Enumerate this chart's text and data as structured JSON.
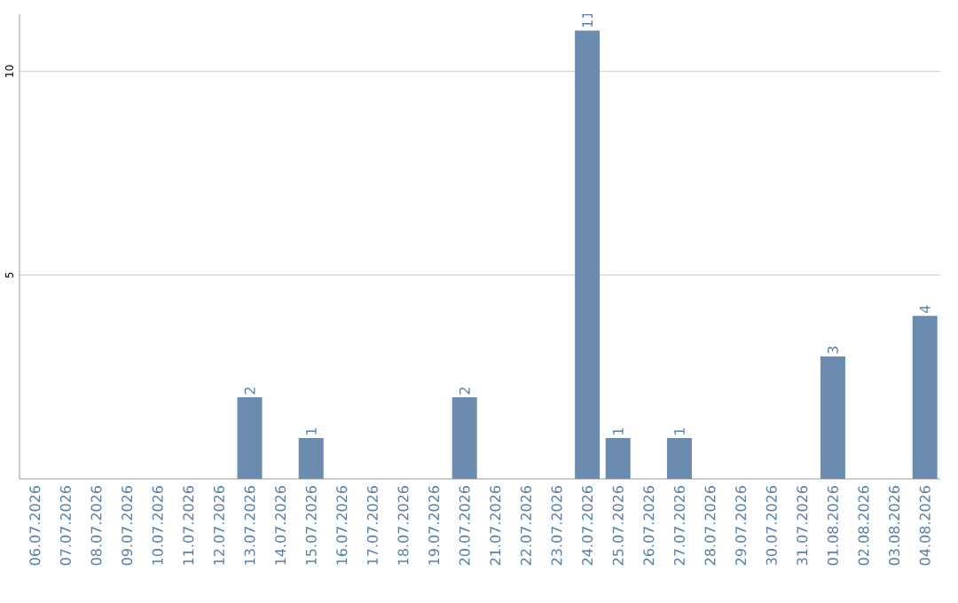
{
  "chart_data": {
    "type": "bar",
    "categories": [
      "06.07.2026",
      "07.07.2026",
      "08.07.2026",
      "09.07.2026",
      "10.07.2026",
      "11.07.2026",
      "12.07.2026",
      "13.07.2026",
      "14.07.2026",
      "15.07.2026",
      "16.07.2026",
      "17.07.2026",
      "18.07.2026",
      "19.07.2026",
      "20.07.2026",
      "21.07.2026",
      "22.07.2026",
      "23.07.2026",
      "24.07.2026",
      "25.07.2026",
      "26.07.2026",
      "27.07.2026",
      "28.07.2026",
      "29.07.2026",
      "30.07.2026",
      "31.07.2026",
      "01.08.2026",
      "02.08.2026",
      "03.08.2026",
      "04.08.2026"
    ],
    "values": [
      0,
      0,
      0,
      0,
      0,
      0,
      0,
      2,
      0,
      1,
      0,
      0,
      0,
      0,
      2,
      0,
      0,
      0,
      11,
      1,
      0,
      1,
      0,
      0,
      0,
      0,
      3,
      0,
      0,
      4
    ],
    "value_labels": [
      null,
      null,
      null,
      null,
      null,
      null,
      null,
      "2",
      null,
      "1",
      null,
      null,
      null,
      null,
      "2",
      null,
      null,
      null,
      "11",
      "1",
      null,
      "1",
      null,
      null,
      null,
      null,
      "3",
      null,
      null,
      "4"
    ],
    "color": "#6b8cae",
    "ylim": [
      0,
      11.4
    ],
    "yticks": [
      5,
      10
    ],
    "grid": "y"
  }
}
